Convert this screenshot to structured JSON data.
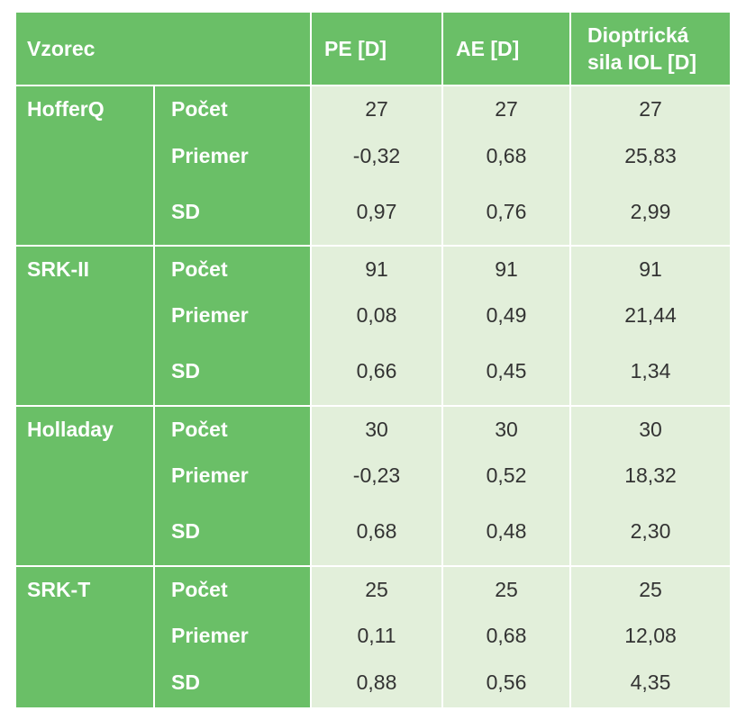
{
  "header": {
    "formula": "Vzorec",
    "pe": "PE [D]",
    "ae": "AE [D]",
    "iol_line1": "Dioptrická",
    "iol_line2": "sila IOL [D]"
  },
  "groups": [
    {
      "formula": "HofferQ",
      "rows": [
        {
          "stat": "Počet",
          "pe": "27",
          "ae": "27",
          "iol": "27"
        },
        {
          "stat": "Priemer",
          "pe": "-0,32",
          "ae": "0,68",
          "iol": "25,83"
        },
        {
          "stat": "SD",
          "pe": "0,97",
          "ae": "0,76",
          "iol": "2,99"
        }
      ]
    },
    {
      "formula": "SRK-II",
      "rows": [
        {
          "stat": "Počet",
          "pe": "91",
          "ae": "91",
          "iol": "91"
        },
        {
          "stat": "Priemer",
          "pe": "0,08",
          "ae": "0,49",
          "iol": "21,44"
        },
        {
          "stat": "SD",
          "pe": "0,66",
          "ae": "0,45",
          "iol": "1,34"
        }
      ]
    },
    {
      "formula": "Holladay",
      "rows": [
        {
          "stat": "Počet",
          "pe": "30",
          "ae": "30",
          "iol": "30"
        },
        {
          "stat": "Priemer",
          "pe": "-0,23",
          "ae": "0,52",
          "iol": "18,32"
        },
        {
          "stat": "SD",
          "pe": "0,68",
          "ae": "0,48",
          "iol": "2,30"
        }
      ]
    },
    {
      "formula": "SRK-T",
      "rows": [
        {
          "stat": "Počet",
          "pe": "25",
          "ae": "25",
          "iol": "25"
        },
        {
          "stat": "Priemer",
          "pe": "0,11",
          "ae": "0,68",
          "iol": "12,08"
        },
        {
          "stat": "SD",
          "pe": "0,88",
          "ae": "0,56",
          "iol": "4,35"
        }
      ]
    }
  ],
  "colors": {
    "header_green": "#6abf67",
    "cell_light_green": "#e2efda",
    "text_dark": "#333333"
  }
}
